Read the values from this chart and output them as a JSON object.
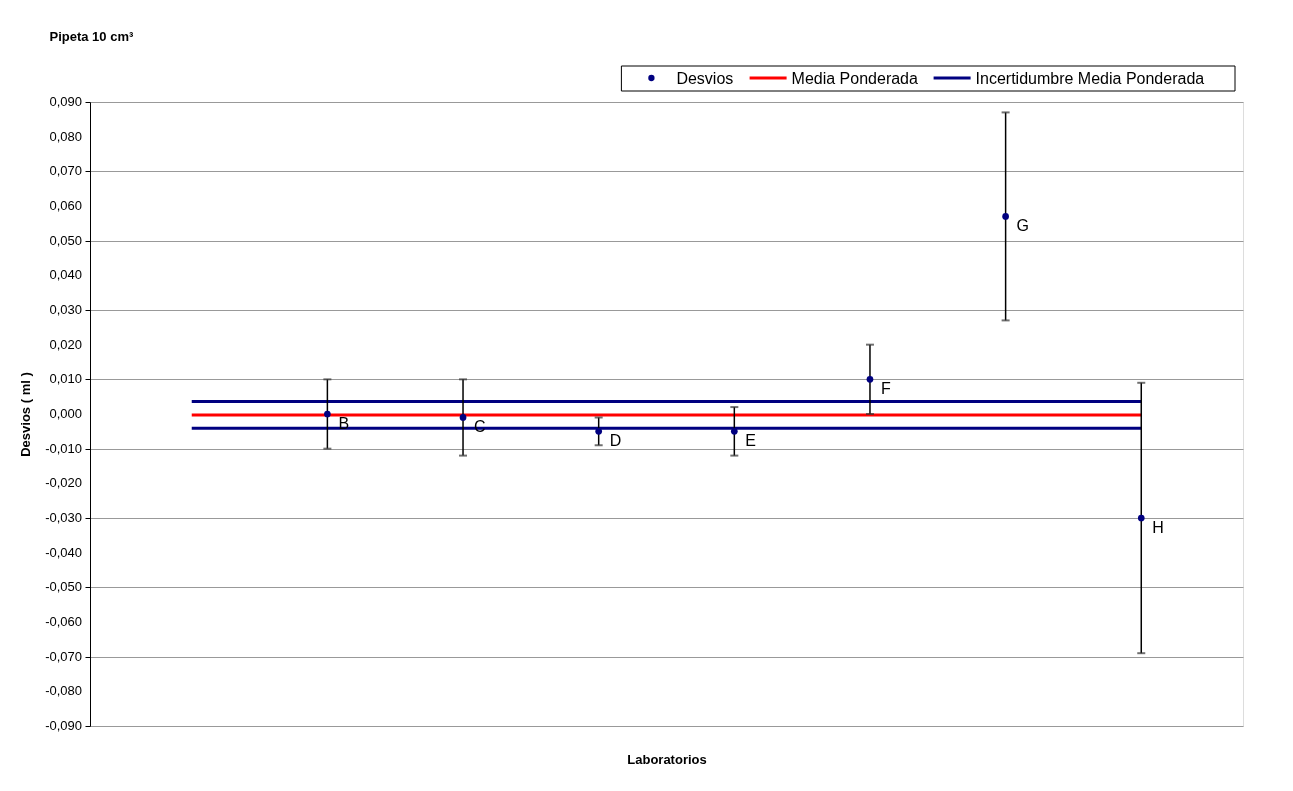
{
  "chart_data": {
    "type": "scatter",
    "title": "Pipeta 10 cm³",
    "xlabel": "Laboratorios",
    "ylabel": "Desvios ( ml )",
    "categories": [
      null,
      null,
      null,
      null,
      null,
      null,
      null,
      null
    ],
    "ylim": [
      -0.09,
      0.09
    ],
    "yticks": [
      {
        "value": -0.09,
        "label": "-0,090"
      },
      {
        "value": -0.08,
        "label": "-0,080"
      },
      {
        "value": -0.07,
        "label": "-0,070"
      },
      {
        "value": -0.06,
        "label": "-0,060"
      },
      {
        "value": -0.05,
        "label": "-0,050"
      },
      {
        "value": -0.04,
        "label": "-0,040"
      },
      {
        "value": -0.03,
        "label": "-0,030"
      },
      {
        "value": -0.02,
        "label": "-0,020"
      },
      {
        "value": -0.01,
        "label": "-0,010"
      },
      {
        "value": 0,
        "label": "0,000"
      },
      {
        "value": 0.01,
        "label": "0,010"
      },
      {
        "value": 0.02,
        "label": "0,020"
      },
      {
        "value": 0.03,
        "label": "0,030"
      },
      {
        "value": 0.04,
        "label": "0,040"
      },
      {
        "value": 0.05,
        "label": "0,050"
      },
      {
        "value": 0.06,
        "label": "0,060"
      },
      {
        "value": 0.07,
        "label": "0,070"
      },
      {
        "value": 0.08,
        "label": "0,080"
      },
      {
        "value": 0.09,
        "label": "0,090"
      }
    ],
    "grid": "y",
    "legend": "top right",
    "series": [
      {
        "name": "Desvios",
        "marker": "circle",
        "color": "#000080",
        "values": [
          null,
          0.0,
          -0.001,
          -0.005,
          -0.005,
          0.01,
          0.057,
          -0.03
        ],
        "errors": [
          null,
          [
            -0.01,
            0.01
          ],
          [
            -0.012,
            0.01
          ],
          [
            -0.009,
            -0.001
          ],
          [
            -0.012,
            0.002
          ],
          [
            0.0,
            0.02
          ],
          [
            0.027,
            0.087
          ],
          [
            -0.069,
            0.009
          ]
        ]
      },
      {
        "name": "Media Ponderada",
        "type": "line",
        "color": "#ff0000",
        "values": [
          -0.0003,
          -0.0003,
          -0.0003,
          -0.0003,
          -0.0003,
          -0.0003,
          -0.0003,
          -0.0003
        ]
      },
      {
        "name": "Incertidumbre Media Ponderada",
        "type": "line",
        "color": "#000080",
        "values": [
          0.0036,
          0.0036,
          0.0036,
          0.0036,
          0.0036,
          0.0036,
          0.0036,
          0.0036
        ]
      },
      {
        "type": "line",
        "color": "#000080",
        "values": [
          -0.0041,
          -0.0041,
          -0.0041,
          -0.0041,
          -0.0041,
          -0.0041,
          -0.0041,
          -0.0041
        ]
      }
    ],
    "annotations": [
      "B",
      "C",
      "D",
      "E",
      "F",
      "G",
      "H"
    ]
  }
}
